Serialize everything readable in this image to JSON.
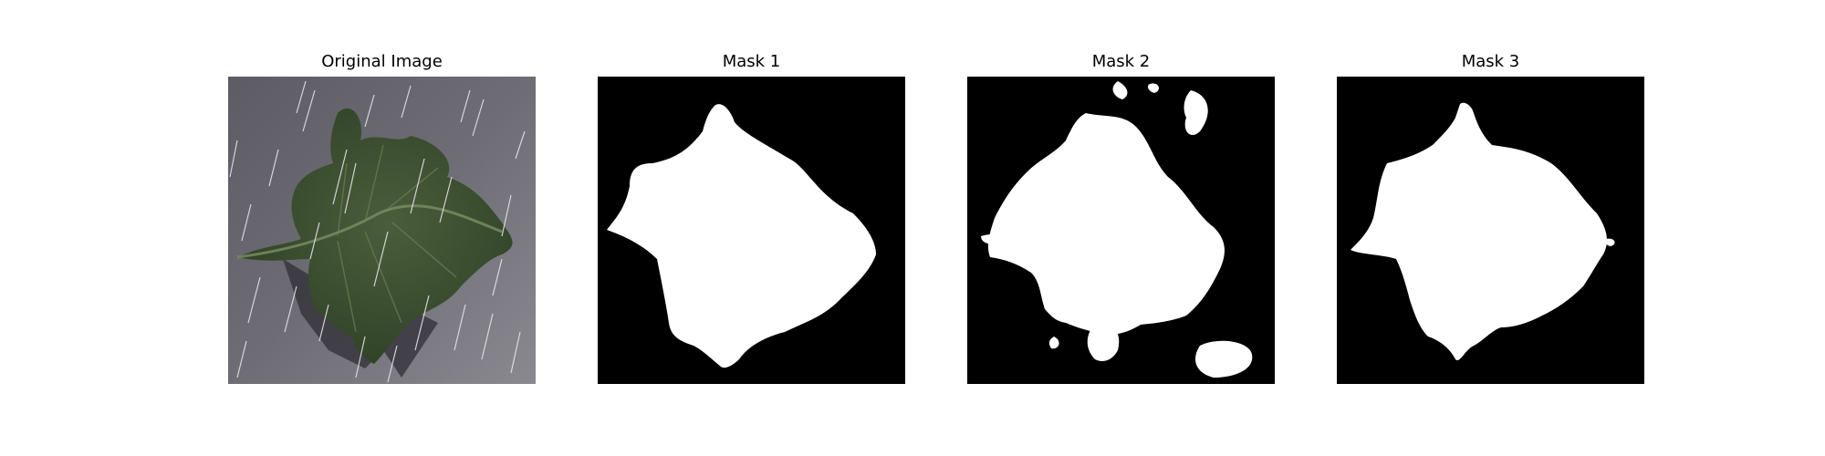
{
  "figure": {
    "panels": [
      {
        "title": "Original Image",
        "content": "leaf photograph with rain streaks"
      },
      {
        "title": "Mask 1",
        "content": "binary segmentation mask"
      },
      {
        "title": "Mask 2",
        "content": "binary segmentation mask"
      },
      {
        "title": "Mask 3",
        "content": "binary segmentation mask"
      }
    ],
    "colors": {
      "background": "#ffffff",
      "mask_foreground": "#ffffff",
      "mask_background": "#000000",
      "photo_surface": "#6b6a72",
      "leaf": "#3f5434",
      "leaf_vein": "#7d8f63",
      "rain": "#e8e8ee"
    }
  }
}
